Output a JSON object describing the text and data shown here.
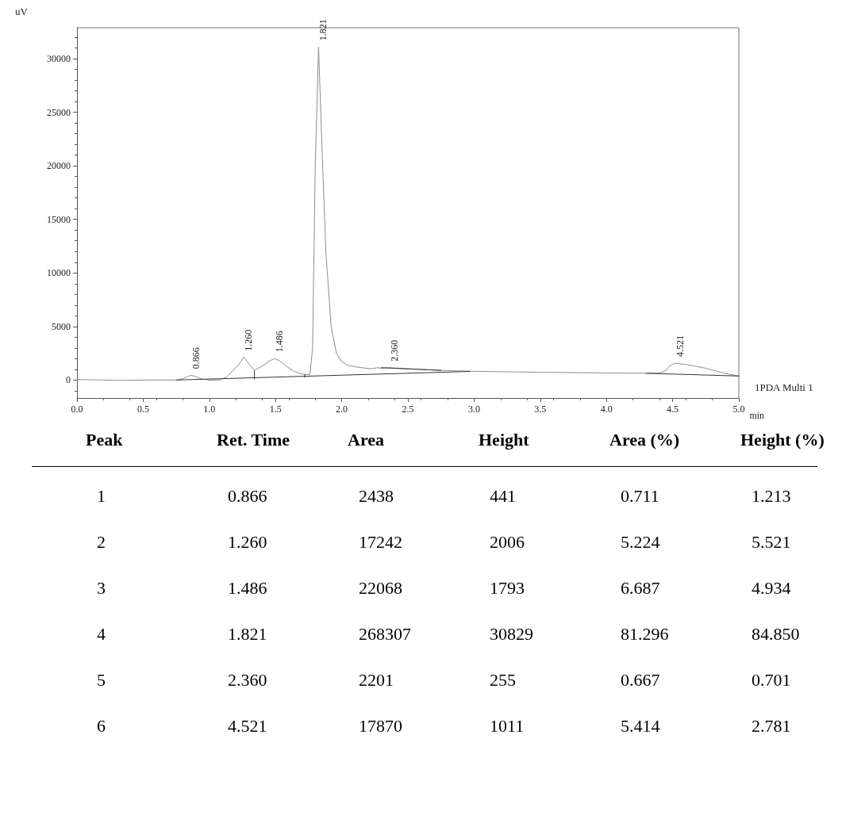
{
  "chart_data": [
    {
      "type": "line",
      "xlabel": "min",
      "ylabel": "uV",
      "grid": false,
      "legend": false,
      "marker": "none",
      "line_style": "solid",
      "xlim": [
        0,
        5
      ],
      "xticks": [
        {
          "value": 0,
          "label": "0.0"
        },
        0.5,
        {
          "value": 1,
          "label": "1.0"
        },
        1.5,
        {
          "value": 2,
          "label": "2.0"
        },
        2.5,
        {
          "value": 3,
          "label": "3.0"
        },
        3.5,
        {
          "value": 4,
          "label": "4.0"
        },
        4.5,
        {
          "value": 5,
          "label": "5.0"
        }
      ],
      "ylim": [
        -1680,
        32900
      ],
      "yticks": [
        0,
        5000,
        10000,
        15000,
        20000,
        25000,
        30000
      ],
      "series": [
        {
          "name": "1PDA Multi 1",
          "color": "#8c8c8c",
          "x": [
            0,
            0.3,
            0.6,
            0.75,
            0.8,
            0.84,
            0.866,
            0.9,
            0.95,
            1.0,
            1.08,
            1.13,
            1.18,
            1.22,
            1.26,
            1.3,
            1.34,
            1.4,
            1.45,
            1.49,
            1.53,
            1.58,
            1.64,
            1.7,
            1.76,
            1.78,
            1.8,
            1.825,
            1.85,
            1.88,
            1.92,
            1.96,
            2.0,
            2.05,
            2.15,
            2.22,
            2.27,
            2.3,
            2.36,
            2.5,
            2.75,
            3.0,
            3.5,
            4.0,
            4.3,
            4.4,
            4.45,
            4.48,
            4.52,
            4.6,
            4.75,
            4.9,
            5.0
          ],
          "values": [
            50,
            -30,
            0,
            0,
            120,
            350,
            440,
            300,
            80,
            -20,
            0,
            300,
            900,
            1400,
            2120,
            1500,
            900,
            1300,
            1750,
            2000,
            1800,
            1300,
            800,
            550,
            500,
            3000,
            20000,
            31100,
            22000,
            12000,
            5000,
            2500,
            1700,
            1350,
            1150,
            1050,
            1150,
            1100,
            1150,
            1050,
            900,
            810,
            720,
            660,
            630,
            640,
            900,
            1350,
            1570,
            1450,
            1100,
            600,
            370
          ]
        },
        {
          "color": "#333333",
          "x": [
            0.75,
            2.97
          ],
          "values": [
            0,
            800
          ]
        },
        {
          "color": "#333333",
          "x": [
            2.3,
            2.75
          ],
          "values": [
            1150,
            900
          ]
        },
        {
          "color": "#333333",
          "x": [
            4.3,
            5.0
          ],
          "values": [
            630,
            370
          ]
        },
        {
          "color": "#333333",
          "x": [
            1.34,
            1.34
          ],
          "values": [
            100,
            850
          ]
        },
        {
          "color": "#333333",
          "x": [
            1.72,
            1.72
          ],
          "values": [
            250,
            520
          ]
        }
      ],
      "annotations": [
        {
          "text": "0.866",
          "x": 0.866,
          "y": 440
        },
        {
          "text": "1.260",
          "x": 1.26,
          "y": 2120
        },
        {
          "text": "1.486",
          "x": 1.49,
          "y": 2000
        },
        {
          "text": "1.821",
          "x": 1.825,
          "y": 31100
        },
        {
          "text": "2.360",
          "x": 2.36,
          "y": 1150
        },
        {
          "text": "4.521",
          "x": 4.52,
          "y": 1570
        }
      ]
    },
    {
      "type": "other",
      "categories": [
        "Peak",
        "Ret. Time",
        "Area",
        "Height",
        "Area (%)",
        "Height (%)"
      ],
      "annotations": [
        "1",
        "0.866",
        "2438",
        "441",
        "0.711",
        "1.213",
        "2",
        "1.260",
        "17242",
        "2006",
        "5.224",
        "5.521",
        "3",
        "1.486",
        "22068",
        "1793",
        "6.687",
        "4.934",
        "4",
        "1.821",
        "268307",
        "30829",
        "81.296",
        "84.850",
        "5",
        "2.360",
        "2201",
        "255",
        "0.667",
        "0.701",
        "6",
        "4.521",
        "17870",
        "1011",
        "5.414",
        "2.781"
      ]
    }
  ]
}
